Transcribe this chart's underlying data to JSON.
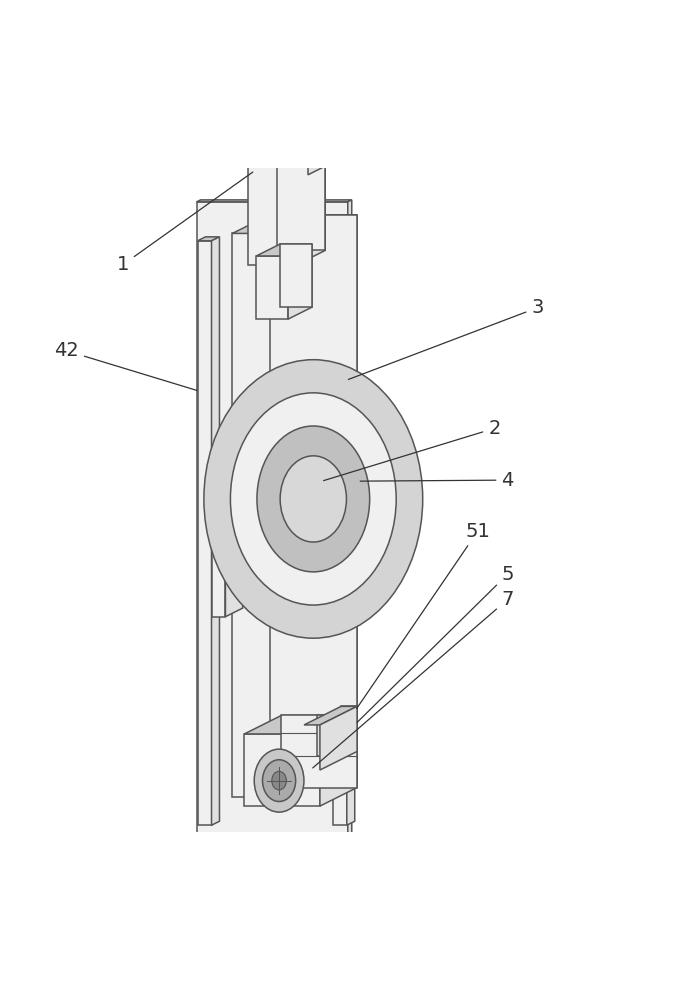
{
  "bg_color": "#ffffff",
  "line_color": "#555555",
  "fill_light": "#f0f0f0",
  "fill_mid": "#e0e0e0",
  "fill_dark": "#c8c8c8",
  "label_color": "#333333",
  "figsize": [
    6.77,
    10.0
  ],
  "dpi": 100
}
